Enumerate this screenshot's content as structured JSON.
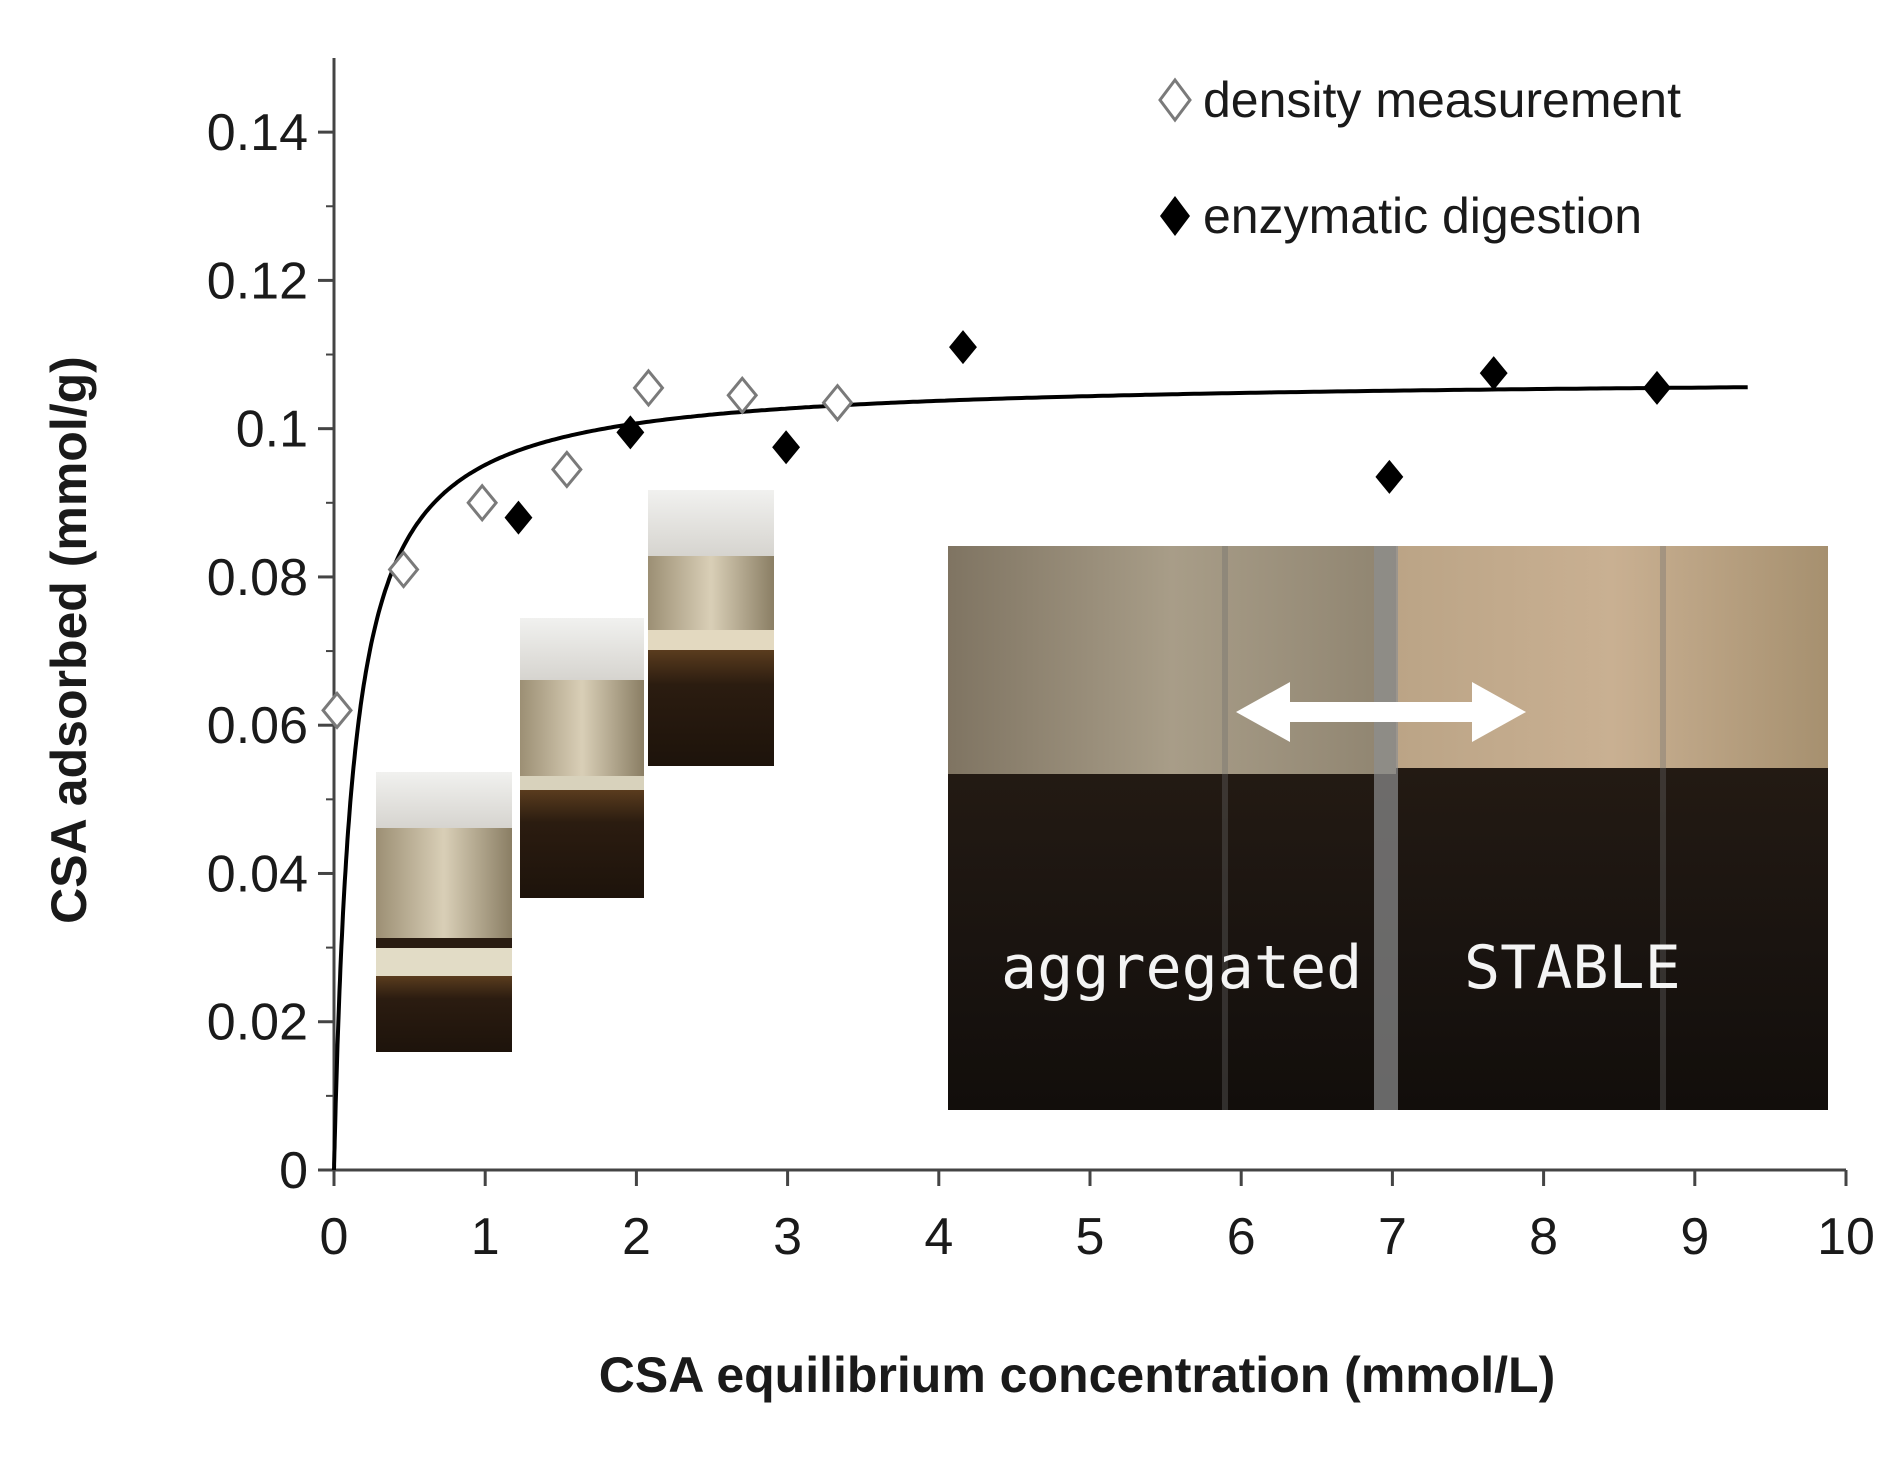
{
  "chart_data": {
    "type": "scatter",
    "title": "",
    "xlabel": "CSA equilibrium concentration (mmol/L)",
    "ylabel": "CSA adsorbed (mmol/g)",
    "xlim": [
      0,
      10
    ],
    "ylim": [
      0,
      0.14
    ],
    "x_ticks": [
      0,
      1,
      2,
      3,
      4,
      5,
      6,
      7,
      8,
      9,
      10
    ],
    "y_ticks": [
      0,
      0.02,
      0.04,
      0.06,
      0.08,
      0.1,
      0.12,
      0.14
    ],
    "y_tick_labels": [
      "0",
      "0.02",
      "0.04",
      "0.06",
      "0.08",
      "0.1",
      "0.12",
      "0.14"
    ],
    "grid": false,
    "legend_position": "top-right",
    "series": [
      {
        "name": "density measurement",
        "marker": "open-diamond",
        "color": "#7a7a7a",
        "points": [
          {
            "x": 0.02,
            "y": 0.062
          },
          {
            "x": 0.46,
            "y": 0.081
          },
          {
            "x": 0.98,
            "y": 0.09
          },
          {
            "x": 1.54,
            "y": 0.0945
          },
          {
            "x": 2.08,
            "y": 0.1055
          },
          {
            "x": 2.7,
            "y": 0.1045
          },
          {
            "x": 3.33,
            "y": 0.1035
          }
        ]
      },
      {
        "name": "enzymatic digestion",
        "marker": "filled-diamond",
        "color": "#000000",
        "points": [
          {
            "x": 1.22,
            "y": 0.088
          },
          {
            "x": 1.96,
            "y": 0.0995
          },
          {
            "x": 2.99,
            "y": 0.0975
          },
          {
            "x": 4.16,
            "y": 0.111
          },
          {
            "x": 6.98,
            "y": 0.0935
          },
          {
            "x": 7.67,
            "y": 0.1075
          },
          {
            "x": 8.75,
            "y": 0.1055
          }
        ]
      }
    ],
    "fit_curve": {
      "type": "langmuir",
      "qmax": 0.107,
      "K": 8.0,
      "x_range": [
        0,
        9.35
      ],
      "color": "#000000"
    },
    "annotations": {
      "left_label": "aggregated",
      "right_label": "STABLE"
    }
  }
}
